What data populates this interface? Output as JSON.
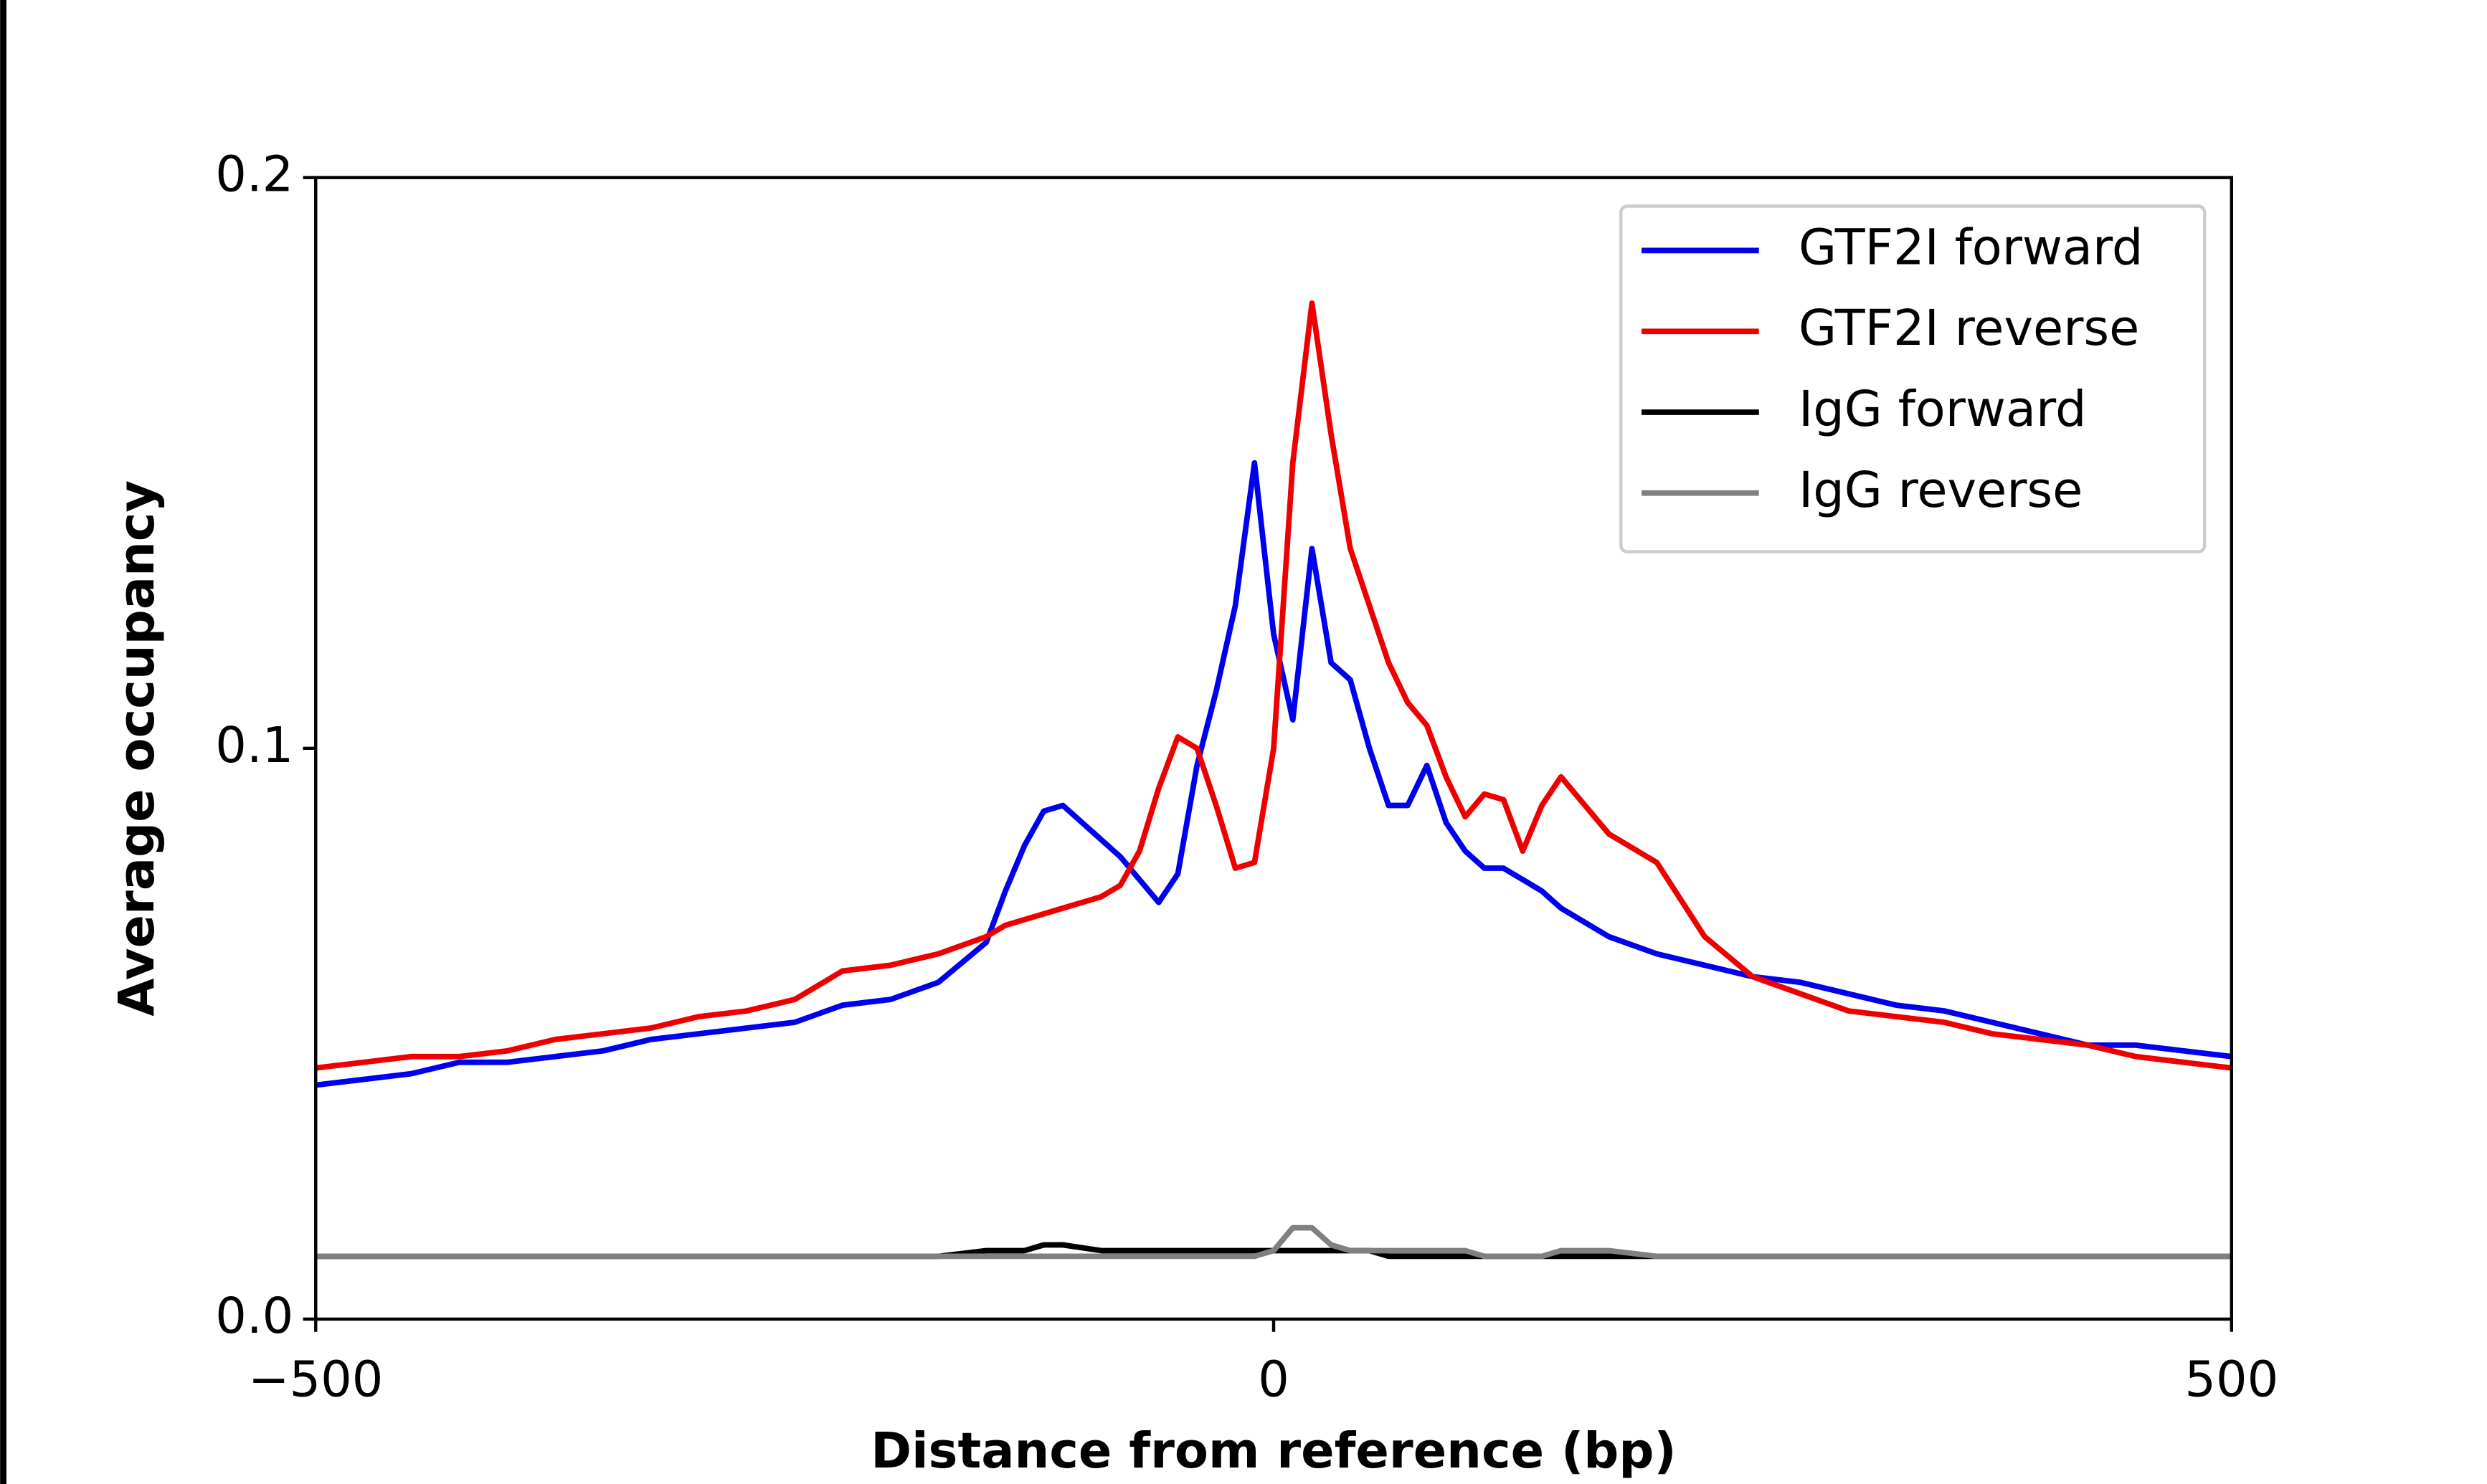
{
  "chart_data": {
    "type": "line",
    "xlabel": "Distance from reference (bp)",
    "ylabel": "Average occupancy",
    "x": [
      -500,
      -475,
      -450,
      -425,
      -400,
      -375,
      -350,
      -325,
      -300,
      -275,
      -250,
      -225,
      -200,
      -175,
      -150,
      -140,
      -130,
      -120,
      -110,
      -100,
      -90,
      -80,
      -70,
      -60,
      -50,
      -40,
      -30,
      -20,
      -10,
      0,
      10,
      20,
      30,
      40,
      50,
      60,
      70,
      80,
      90,
      100,
      110,
      120,
      130,
      140,
      150,
      175,
      200,
      225,
      250,
      275,
      300,
      325,
      350,
      375,
      400,
      425,
      450,
      475,
      500
    ],
    "series": [
      {
        "name": "GTF2I forward",
        "color": "#0000ee",
        "values": [
          0.041,
          0.042,
          0.043,
          0.045,
          0.045,
          0.046,
          0.047,
          0.049,
          0.05,
          0.051,
          0.052,
          0.055,
          0.056,
          0.059,
          0.066,
          0.075,
          0.083,
          0.089,
          0.09,
          0.087,
          0.084,
          0.081,
          0.077,
          0.073,
          0.078,
          0.097,
          0.11,
          0.125,
          0.15,
          0.12,
          0.105,
          0.135,
          0.115,
          0.112,
          0.1,
          0.09,
          0.09,
          0.097,
          0.087,
          0.082,
          0.079,
          0.079,
          0.077,
          0.075,
          0.072,
          0.067,
          0.064,
          0.062,
          0.06,
          0.059,
          0.057,
          0.055,
          0.054,
          0.052,
          0.05,
          0.048,
          0.048,
          0.047,
          0.046
        ]
      },
      {
        "name": "GTF2I reverse",
        "color": "#ee0000",
        "values": [
          0.044,
          0.045,
          0.046,
          0.046,
          0.047,
          0.049,
          0.05,
          0.051,
          0.053,
          0.054,
          0.056,
          0.061,
          0.062,
          0.064,
          0.067,
          0.069,
          0.07,
          0.071,
          0.072,
          0.073,
          0.074,
          0.076,
          0.082,
          0.093,
          0.102,
          0.1,
          0.09,
          0.079,
          0.08,
          0.1,
          0.15,
          0.178,
          0.155,
          0.135,
          0.125,
          0.115,
          0.108,
          0.104,
          0.095,
          0.088,
          0.092,
          0.091,
          0.082,
          0.09,
          0.095,
          0.085,
          0.08,
          0.067,
          0.06,
          0.057,
          0.054,
          0.053,
          0.052,
          0.05,
          0.049,
          0.048,
          0.046,
          0.045,
          0.044
        ]
      },
      {
        "name": "IgG forward",
        "color": "#000000",
        "values": [
          0.011,
          0.011,
          0.011,
          0.011,
          0.011,
          0.011,
          0.011,
          0.011,
          0.011,
          0.011,
          0.011,
          0.011,
          0.011,
          0.011,
          0.012,
          0.012,
          0.012,
          0.013,
          0.013,
          0.0125,
          0.012,
          0.012,
          0.012,
          0.012,
          0.012,
          0.012,
          0.012,
          0.012,
          0.012,
          0.012,
          0.012,
          0.012,
          0.012,
          0.012,
          0.012,
          0.011,
          0.011,
          0.011,
          0.011,
          0.011,
          0.011,
          0.011,
          0.011,
          0.011,
          0.011,
          0.011,
          0.011,
          0.011,
          0.011,
          0.011,
          0.011,
          0.011,
          0.011,
          0.011,
          0.011,
          0.011,
          0.011,
          0.011,
          0.011
        ]
      },
      {
        "name": "IgG reverse",
        "color": "#808080",
        "values": [
          0.011,
          0.011,
          0.011,
          0.011,
          0.011,
          0.011,
          0.011,
          0.011,
          0.011,
          0.011,
          0.011,
          0.011,
          0.011,
          0.011,
          0.011,
          0.011,
          0.011,
          0.011,
          0.011,
          0.011,
          0.011,
          0.011,
          0.011,
          0.011,
          0.011,
          0.011,
          0.011,
          0.011,
          0.011,
          0.012,
          0.016,
          0.016,
          0.013,
          0.012,
          0.012,
          0.012,
          0.012,
          0.012,
          0.012,
          0.012,
          0.011,
          0.011,
          0.011,
          0.011,
          0.012,
          0.012,
          0.011,
          0.011,
          0.011,
          0.011,
          0.011,
          0.011,
          0.011,
          0.011,
          0.011,
          0.011,
          0.011,
          0.011,
          0.011
        ]
      }
    ],
    "xlim": [
      -500,
      500
    ],
    "xticks": [
      {
        "value": -500,
        "label": "−500"
      },
      0,
      500
    ],
    "ylim": [
      0,
      0.2
    ],
    "yticks": [
      {
        "value": 0,
        "label": "0.0"
      },
      0.1,
      0.2
    ],
    "grid": false,
    "legend": "upper right"
  }
}
